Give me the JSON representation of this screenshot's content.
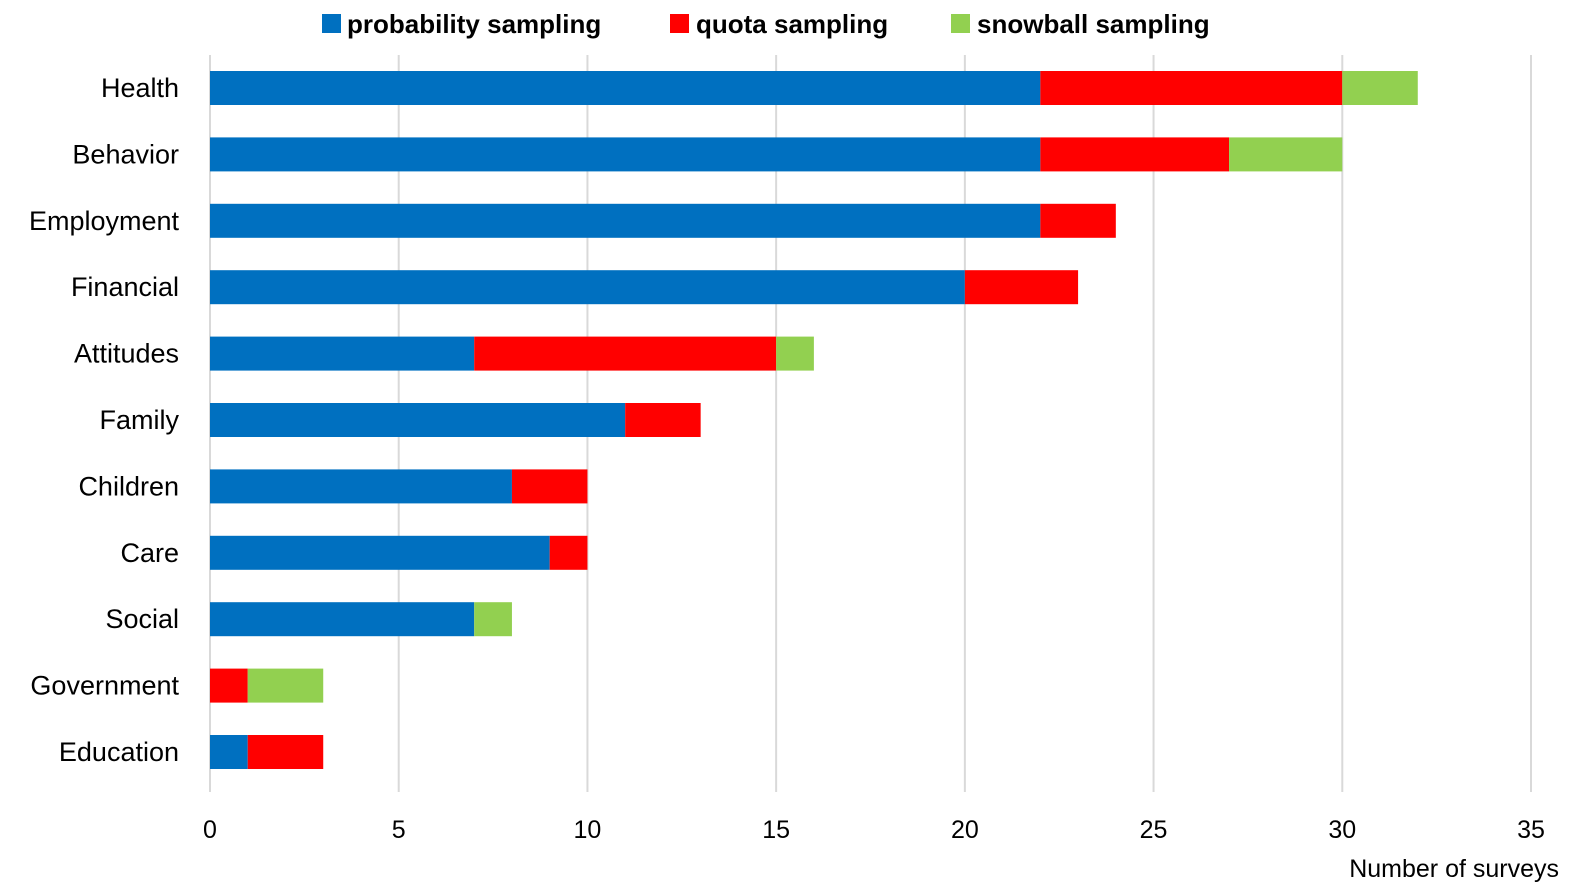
{
  "chart_data": {
    "type": "bar",
    "orientation": "horizontal",
    "stacked": true,
    "categories": [
      "Health",
      "Behavior",
      "Employment",
      "Financial",
      "Attitudes",
      "Family",
      "Children",
      "Care",
      "Social",
      "Government",
      "Education"
    ],
    "series": [
      {
        "name": "probability sampling",
        "color": "#0070c0",
        "values": [
          22,
          22,
          22,
          20,
          7,
          11,
          8,
          9,
          7,
          0,
          1
        ]
      },
      {
        "name": "quota sampling",
        "color": "#ff0000",
        "values": [
          8,
          5,
          2,
          3,
          8,
          2,
          2,
          1,
          0,
          1,
          2
        ]
      },
      {
        "name": "snowball sampling",
        "color": "#92d050",
        "values": [
          2,
          3,
          0,
          0,
          1,
          0,
          0,
          0,
          1,
          2,
          0
        ]
      }
    ],
    "xlabel": "Number of surveys",
    "ylabel": "",
    "xlim": [
      0,
      35
    ],
    "xticks": [
      0,
      5,
      10,
      15,
      20,
      25,
      30,
      35
    ],
    "grid": "vertical",
    "legend": "top"
  }
}
